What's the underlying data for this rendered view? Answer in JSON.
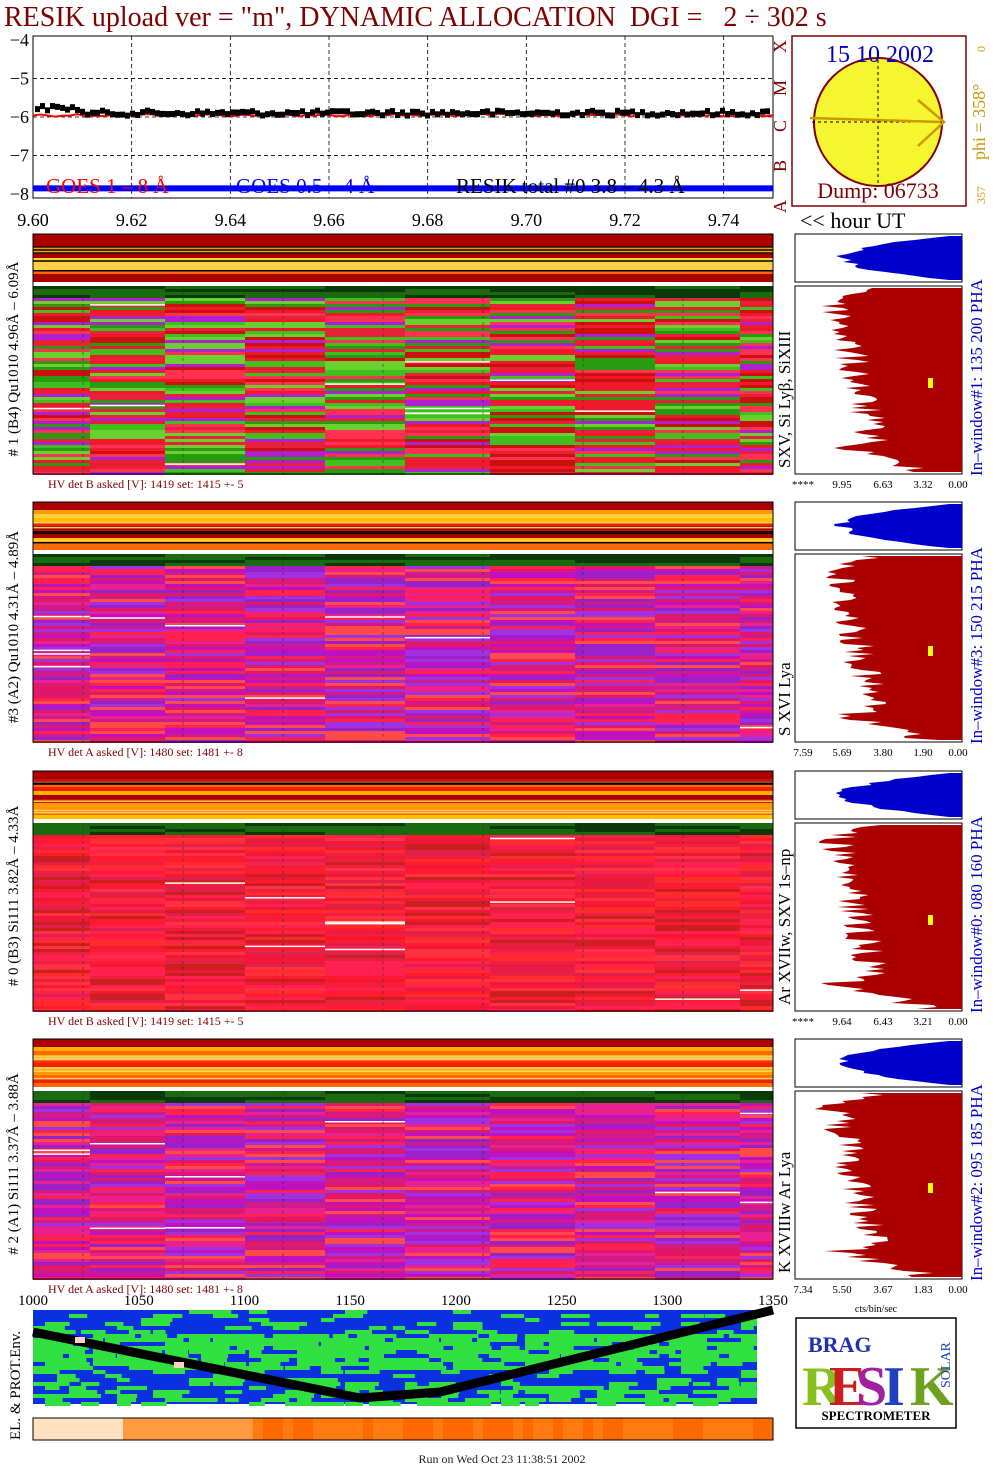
{
  "header": {
    "title": "RESIK upload ver = \"m\", DYNAMIC ALLOCATION  DGI =   2 ÷ 302 s"
  },
  "date_box": {
    "date": "15 10 2002",
    "letters": [
      "X",
      "M",
      "C",
      "B",
      "A"
    ],
    "phi_label": "phi = 358°",
    "phi_top": "0",
    "phi_bottom": "357",
    "dump": "Dump: 06733"
  },
  "hour_label": "<< hour UT",
  "footer": {
    "run": "Run on Wed Oct 23 11:38:51 2002"
  },
  "colors": {
    "title": "#800000",
    "date": "#0000cc",
    "phi": "#cc9900",
    "goes1": "#ff0000",
    "goes2": "#0000ff",
    "resik_total": "#000000",
    "pha_fill": "#aa0000",
    "pha_top": "#0000cc",
    "sun_fill": "#f5f530"
  },
  "chart_data": [
    {
      "type": "line",
      "name": "light-curve",
      "x_ticks": [
        "9.60",
        "9.62",
        "9.64",
        "9.66",
        "9.68",
        "9.70",
        "9.72",
        "9.74"
      ],
      "y_ticks": [
        "−4",
        "−5",
        "−6",
        "−7",
        "−8"
      ],
      "xlim": [
        9.6,
        9.75
      ],
      "ylim": [
        -8.1,
        -3.9
      ],
      "legend": [
        {
          "label": "GOES 1 – 8 Å",
          "color": "#ff0000"
        },
        {
          "label": "GOES 0.5 – 4 Å",
          "color": "#0000ff"
        },
        {
          "label": "RESIK total #0  3.8 – 4.3 Å",
          "color": "#000000"
        }
      ],
      "series": [
        {
          "name": "GOES 1 – 8 Å",
          "level": -5.95
        },
        {
          "name": "GOES 0.5 – 4 Å",
          "level": -7.85
        },
        {
          "name": "RESIK total #0  3.8 – 4.3 Å",
          "level": -5.9
        }
      ]
    },
    {
      "type": "heatmap",
      "name": "detector-spectrograms",
      "panels": [
        {
          "ylabel": "# 1 (B4) Qu1010 4.96Å – 6.09Å",
          "lines": "SXV, Si Lyβ, SiXIII",
          "hv": "HV det B asked [V]:  1419 set:  1415 +-    5",
          "pha_side": "In–window#1:  135 200 PHA",
          "pha_ticks": [
            "****",
            "9.95",
            "6.63",
            "3.32",
            "0.00"
          ],
          "base": "red-green"
        },
        {
          "ylabel": "#3 (A2) Qu1010  4.31Å – 4.89Å",
          "lines": "S XVI Lya",
          "hv": "HV det A asked [V]:  1480 set:  1481 +-    8",
          "pha_side": "In–window#3:  150 215 PHA",
          "pha_ticks": [
            "7.59",
            "5.69",
            "3.80",
            "1.90",
            "0.00"
          ],
          "base": "magenta"
        },
        {
          "ylabel": "# 0 (B3) Si111  3.82Å – 4.33Å",
          "lines": "Ar XVIIw,  SXV 1s–np",
          "hv": "HV det B asked [V]:  1419 set:  1415 +-    5",
          "pha_side": "In–window#0:  080 160 PHA",
          "pha_ticks": [
            "****",
            "9.64",
            "6.43",
            "3.21",
            "0.00"
          ],
          "base": "red"
        },
        {
          "ylabel": "# 2 (A1) Si111  3.37Å – 3.88Å",
          "lines": "K XVIIIw  Ar Lya",
          "hv": "HV det A asked [V]:  1480 set:  1481 +-    8",
          "pha_side": "In–window#2:  095 185 PHA",
          "pha_ticks": [
            "7.34",
            "5.50",
            "3.67",
            "1.83",
            "0.00"
          ],
          "base": "magenta"
        }
      ],
      "pha_xlabel": "cts/bin/sec",
      "x_ticks": [
        "1000",
        "1050",
        "1100",
        "1150",
        "1200",
        "1250",
        "1300",
        "1350"
      ]
    },
    {
      "type": "heatmap",
      "name": "environment-map",
      "ylabel": "EL. & PROT.Env."
    }
  ],
  "logo": {
    "letters": "RESIK",
    "top": "BRAG",
    "side": "SOLAR",
    "bottom": "SPECTROMETER"
  }
}
